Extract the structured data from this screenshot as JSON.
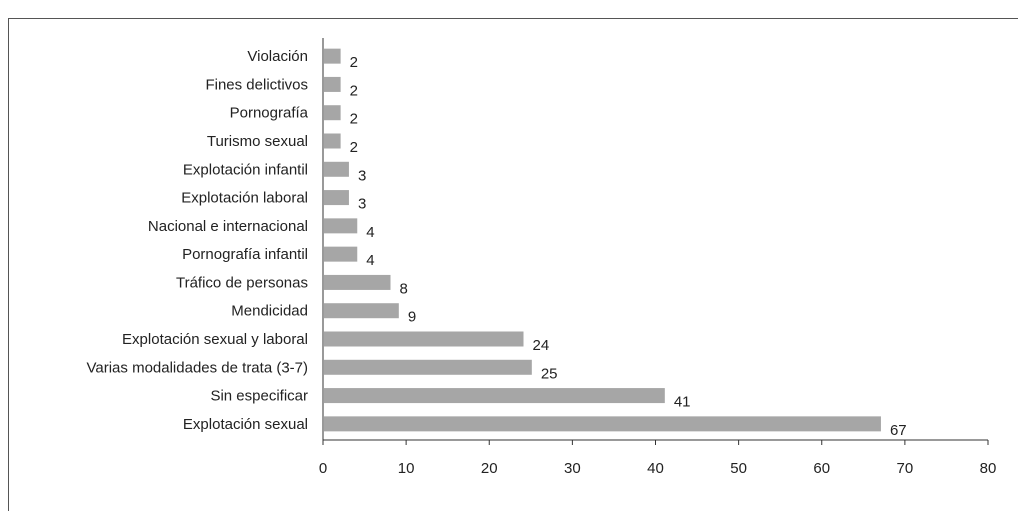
{
  "chart_data": {
    "type": "bar",
    "orientation": "horizontal",
    "title": "",
    "xlabel": "",
    "ylabel": "",
    "categories": [
      "Violación",
      "Fines delictivos",
      "Pornografía",
      "Turismo sexual",
      "Explotación infantil",
      "Explotación laboral",
      "Nacional e internacional",
      "Pornografía infantil",
      "Tráfico de personas",
      "Mendicidad",
      "Explotación sexual y laboral",
      "Varias modalidades de trata (3-7)",
      "Sin especificar",
      "Explotación sexual"
    ],
    "values": [
      2,
      2,
      2,
      2,
      3,
      3,
      4,
      4,
      8,
      9,
      24,
      25,
      41,
      67
    ],
    "xlim": [
      0,
      80
    ],
    "xticks": [
      0,
      10,
      20,
      30,
      40,
      50,
      60,
      70,
      80
    ],
    "grid": false,
    "legend": "none",
    "bar_color": "#a6a6a6"
  }
}
